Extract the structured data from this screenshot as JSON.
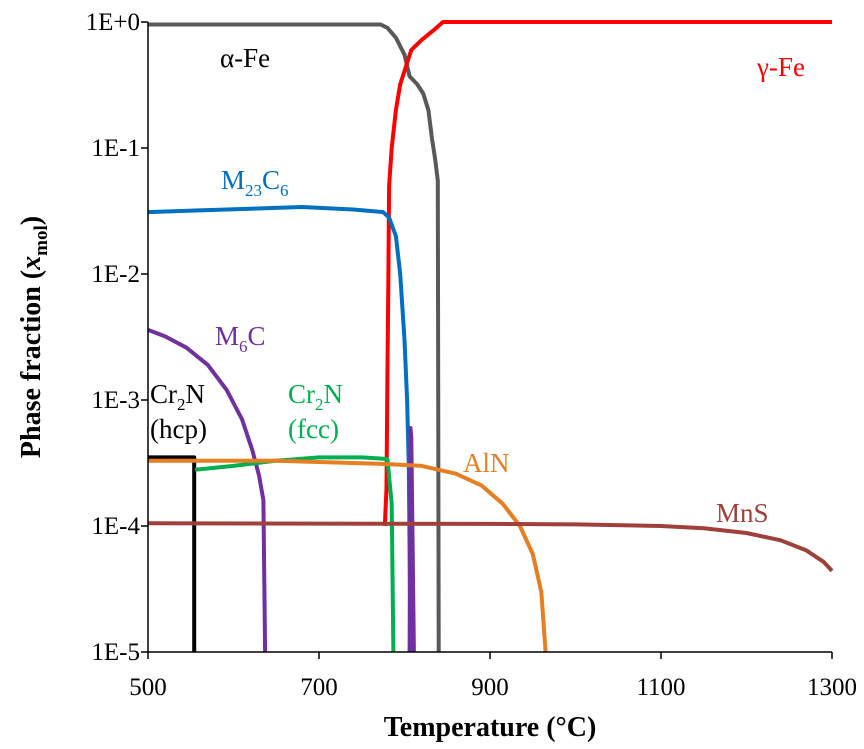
{
  "chart_data": {
    "type": "line",
    "xlabel": "Temperature (°C)",
    "ylabel": {
      "main": "Phase fraction (",
      "var": "x",
      "sub": "mol",
      "close": ")"
    },
    "xlim": [
      500,
      1300
    ],
    "ylim": [
      1e-05,
      1
    ],
    "yscale": "log",
    "xticks": [
      500,
      700,
      900,
      1100,
      1300
    ],
    "xtick_labels": [
      "500",
      "700",
      "900",
      "1100",
      "1300"
    ],
    "yticks": [
      1e-05,
      0.0001,
      0.001,
      0.01,
      0.1,
      1
    ],
    "ytick_labels": [
      "1E-5",
      "1E-4",
      "1E-3",
      "1E-2",
      "1E-1",
      "1E+0"
    ],
    "grid": false,
    "legend": "none",
    "series": [
      {
        "name": "α-Fe",
        "label": [
          {
            "t": "α-Fe"
          }
        ],
        "color": "#595959",
        "points": [
          [
            500,
            0.955
          ],
          [
            600,
            0.955
          ],
          [
            700,
            0.955
          ],
          [
            772,
            0.955
          ],
          [
            780,
            0.9
          ],
          [
            790,
            0.75
          ],
          [
            800,
            0.55
          ],
          [
            806,
            0.37
          ],
          [
            815,
            0.32
          ],
          [
            822,
            0.27
          ],
          [
            828,
            0.2
          ],
          [
            832,
            0.12
          ],
          [
            836,
            0.08
          ],
          [
            839,
            0.055
          ],
          [
            840,
            1e-05
          ]
        ]
      },
      {
        "name": "γ-Fe",
        "label": [
          {
            "t": "γ-Fe"
          }
        ],
        "color": "#ff0000",
        "points": [
          [
            777,
            0.0001
          ],
          [
            779,
            0.0002
          ],
          [
            780,
            0.0015
          ],
          [
            781,
            0.008
          ],
          [
            782,
            0.05
          ],
          [
            785,
            0.1
          ],
          [
            790,
            0.2
          ],
          [
            795,
            0.32
          ],
          [
            802,
            0.45
          ],
          [
            808,
            0.6
          ],
          [
            820,
            0.72
          ],
          [
            835,
            0.87
          ],
          [
            845,
            1.0
          ],
          [
            1300,
            1.0
          ]
        ]
      },
      {
        "name": "M23C6",
        "label": [
          {
            "t": "M"
          },
          {
            "t": "23",
            "sub": true
          },
          {
            "t": "C"
          },
          {
            "t": "6",
            "sub": true
          }
        ],
        "color": "#0070c0",
        "points": [
          [
            500,
            0.031
          ],
          [
            560,
            0.032
          ],
          [
            620,
            0.033
          ],
          [
            680,
            0.034
          ],
          [
            740,
            0.0325
          ],
          [
            775,
            0.031
          ],
          [
            782,
            0.028
          ],
          [
            790,
            0.02
          ],
          [
            795,
            0.01
          ],
          [
            800,
            0.003
          ],
          [
            803,
            0.001
          ],
          [
            805,
            0.0003
          ],
          [
            807,
            1e-05
          ]
        ]
      },
      {
        "name": "M6C",
        "label": [
          {
            "t": "M"
          },
          {
            "t": "6",
            "sub": true
          },
          {
            "t": "C"
          }
        ],
        "color": "#7030a0",
        "points": [
          [
            500,
            0.0036
          ],
          [
            520,
            0.0032
          ],
          [
            545,
            0.0026
          ],
          [
            570,
            0.0019
          ],
          [
            592,
            0.0012
          ],
          [
            610,
            0.0007
          ],
          [
            622,
            0.0004
          ],
          [
            630,
            0.00025
          ],
          [
            635,
            0.00016
          ],
          [
            637,
            1e-05
          ]
        ]
      },
      {
        "name": "M6C-spike",
        "color": "#7030a0",
        "points": [
          [
            806,
            1e-05
          ],
          [
            807,
            0.0006
          ],
          [
            808,
            0.0005
          ],
          [
            811,
            1e-05
          ]
        ]
      },
      {
        "name": "Cr2N (hcp)",
        "label": [
          {
            "t": "Cr"
          },
          {
            "t": "2",
            "sub": true
          },
          {
            "t": "N"
          }
        ],
        "label2": "(hcp)",
        "color": "#000000",
        "points": [
          [
            500,
            0.00035
          ],
          [
            554,
            0.00035
          ],
          [
            554,
            1e-05
          ]
        ]
      },
      {
        "name": "Cr2N (fcc)",
        "label": [
          {
            "t": "Cr"
          },
          {
            "t": "2",
            "sub": true
          },
          {
            "t": "N"
          }
        ],
        "label2": "(fcc)",
        "color": "#00b050",
        "points": [
          [
            555,
            0.00028
          ],
          [
            600,
            0.0003
          ],
          [
            650,
            0.00033
          ],
          [
            700,
            0.00035
          ],
          [
            750,
            0.00035
          ],
          [
            780,
            0.00034
          ],
          [
            785,
            0.00015
          ],
          [
            787,
            1e-05
          ]
        ]
      },
      {
        "name": "AlN",
        "label": [
          {
            "t": "AlN"
          }
        ],
        "color": "#e67e22",
        "points": [
          [
            500,
            0.00033
          ],
          [
            650,
            0.00033
          ],
          [
            780,
            0.00031
          ],
          [
            820,
            0.0003
          ],
          [
            860,
            0.00026
          ],
          [
            890,
            0.00021
          ],
          [
            915,
            0.00015
          ],
          [
            935,
            0.0001
          ],
          [
            950,
            6e-05
          ],
          [
            960,
            3e-05
          ],
          [
            965,
            1e-05
          ]
        ]
      },
      {
        "name": "MnS",
        "label": [
          {
            "t": "MnS"
          }
        ],
        "color": "#a0403a",
        "points": [
          [
            500,
            0.000105
          ],
          [
            900,
            0.000104
          ],
          [
            1000,
            0.000103
          ],
          [
            1100,
            0.0001
          ],
          [
            1150,
            9.6e-05
          ],
          [
            1200,
            8.8e-05
          ],
          [
            1240,
            7.7e-05
          ],
          [
            1270,
            6.4e-05
          ],
          [
            1290,
            5.2e-05
          ],
          [
            1300,
            4.4e-05
          ]
        ]
      }
    ]
  }
}
